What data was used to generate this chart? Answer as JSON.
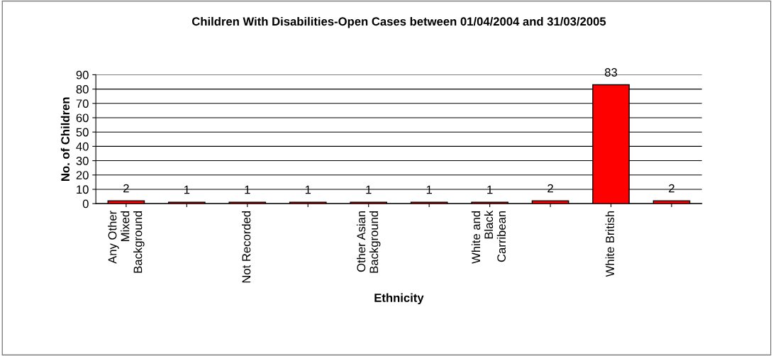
{
  "chart_data": {
    "type": "bar",
    "title": "Children With Disabilities-Open Cases between 01/04/2004 and 31/03/2005",
    "xlabel": "Ethnicity",
    "ylabel": "No. of Children",
    "categories": [
      "Any Other Mixed Background",
      null,
      "Not Recorded",
      null,
      "Other Asian Background",
      null,
      "White and Black Carribean",
      null,
      "White British",
      null
    ],
    "values": [
      2,
      1,
      1,
      1,
      1,
      1,
      1,
      2,
      83,
      2
    ],
    "color": "#ff0000",
    "ylim": [
      0,
      90
    ],
    "yticks": [
      0,
      10,
      20,
      30,
      40,
      50,
      60,
      70,
      80,
      90
    ],
    "grid": "y",
    "data_labels": true
  }
}
